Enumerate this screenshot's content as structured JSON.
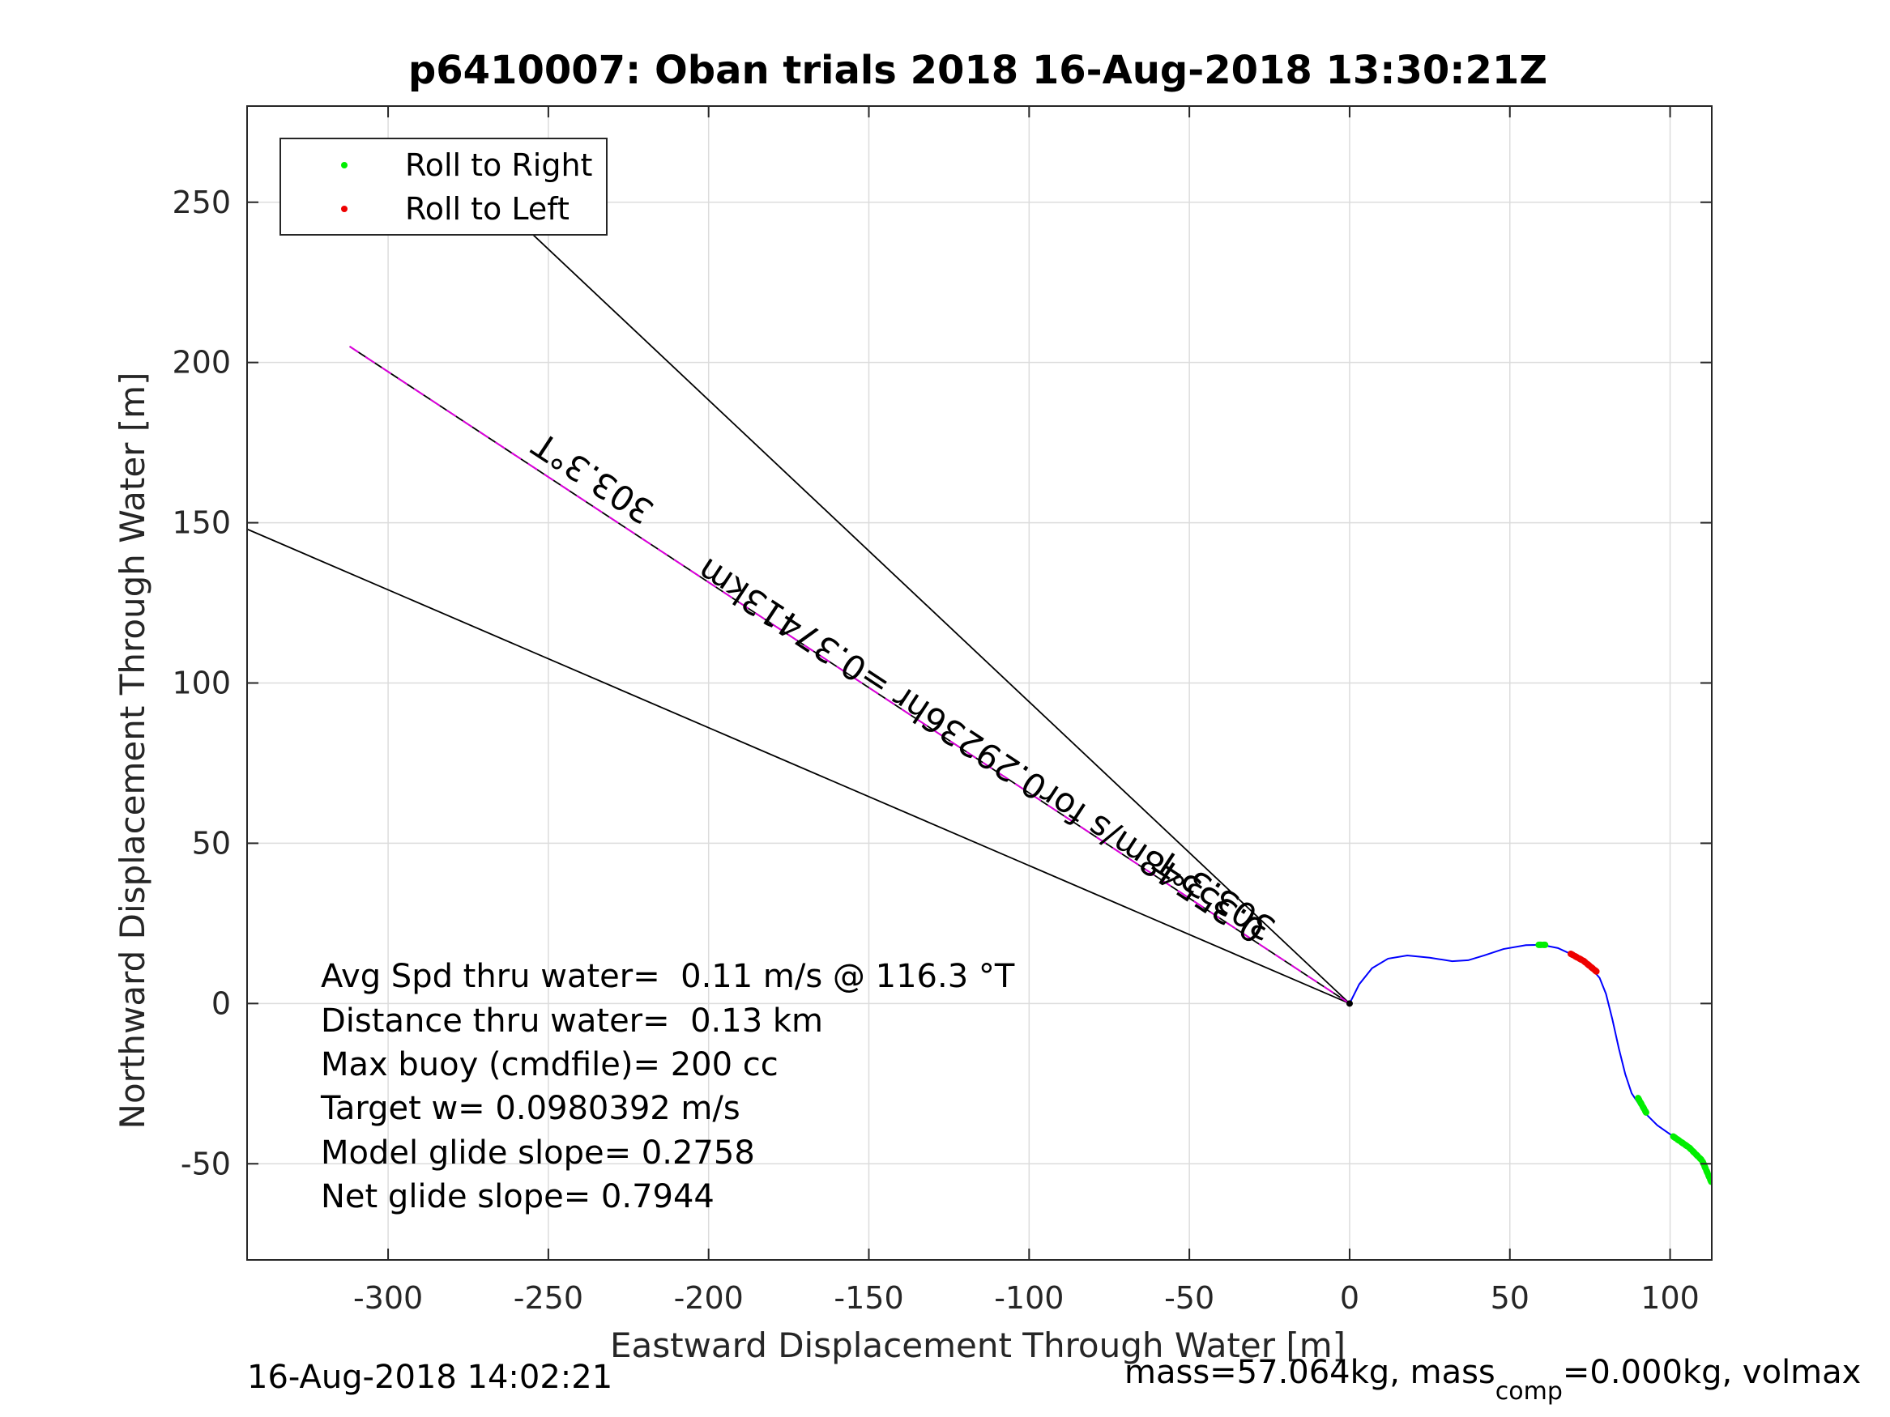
{
  "chart_data": {
    "type": "line",
    "title": "p6410007: Oban trials 2018 16-Aug-2018 13:30:21Z",
    "xlabel": "Eastward Displacement Through Water [m]",
    "ylabel": "Northward Displacement Through Water [m]",
    "xlim": [
      -344,
      113
    ],
    "ylim": [
      -80,
      280
    ],
    "xticks": [
      -300,
      -250,
      -200,
      -150,
      -100,
      -50,
      0,
      50,
      100
    ],
    "yticks": [
      -50,
      0,
      50,
      100,
      150,
      200,
      250
    ],
    "xtick_labels": [
      "-300",
      "-250",
      "-200",
      "-150",
      "-100",
      "-50",
      "0",
      "50",
      "100"
    ],
    "ytick_labels": [
      "-50",
      "0",
      "50",
      "100",
      "150",
      "200",
      "250"
    ],
    "grid": true,
    "legend": {
      "placement": "top-left",
      "entries": [
        {
          "label": "Roll to Right",
          "color": "#00ee00"
        },
        {
          "label": "Roll to Left",
          "color": "#ee0000"
        }
      ]
    },
    "track": {
      "color": "#0000ff",
      "x": [
        0,
        3,
        7,
        12,
        18,
        25,
        32,
        37,
        42,
        48,
        55,
        60,
        65,
        70,
        75,
        78,
        80,
        82,
        84,
        86,
        88,
        90,
        92,
        96,
        101,
        106,
        110,
        113
      ],
      "y": [
        0,
        6,
        11,
        14,
        15,
        14.3,
        13.2,
        13.5,
        15,
        17,
        18.2,
        18.3,
        17.3,
        15,
        11.5,
        8,
        3,
        -5,
        -14,
        -22,
        -28,
        -31,
        -34,
        -38,
        -41.5,
        -45,
        -49,
        -55
      ]
    },
    "roll_right_segments": [
      {
        "x": [
          59,
          61
        ],
        "y": [
          18.3,
          18.3
        ]
      },
      {
        "x": [
          90,
          92.5
        ],
        "y": [
          -29.5,
          -34
        ]
      },
      {
        "x": [
          101,
          106,
          110,
          113
        ],
        "y": [
          -41.5,
          -45,
          -49,
          -56
        ]
      }
    ],
    "roll_left_segments": [
      {
        "x": [
          69,
          73,
          77
        ],
        "y": [
          15.5,
          13.3,
          10
        ]
      }
    ],
    "ref_lines": [
      {
        "color": "#000000",
        "x": [
          0,
          -273
        ],
        "y": [
          0,
          257
        ]
      },
      {
        "color": "#000000",
        "x": [
          0,
          -344
        ],
        "y": [
          0,
          148
        ]
      },
      {
        "color": "#000000",
        "x": [
          0,
          -312
        ],
        "y": [
          0,
          205
        ]
      },
      {
        "color": "#dd00dd",
        "x": [
          0,
          -312
        ],
        "y": [
          0,
          205
        ]
      }
    ],
    "line_labels": [
      {
        "text": "303.3°T",
        "x": -234,
        "y": 167,
        "angle": 213.3
      },
      {
        "text": "303.3°T",
        "x": -40,
        "y": 37,
        "angle": 213.3
      },
      {
        "text": "0.35548m/s for0.29236hr =0.37413km",
        "x": -113,
        "y": 82,
        "angle": 213.3
      }
    ],
    "annotations": [
      "Avg Spd thru water=  0.11 m/s @ 116.3 °T",
      "Distance thru water=  0.13 km",
      "Max buoy (cmdfile)= 200 cc",
      "Target w= 0.0980392 m/s",
      "Model glide slope= 0.2758",
      "Net glide slope= 0.7944"
    ]
  },
  "footer": {
    "timestamp": "16-Aug-2018 14:02:21",
    "mass_text_a": "mass=57.064kg, mass",
    "mass_text_sub": "comp",
    "mass_text_b": "=0.000kg, volmax"
  }
}
